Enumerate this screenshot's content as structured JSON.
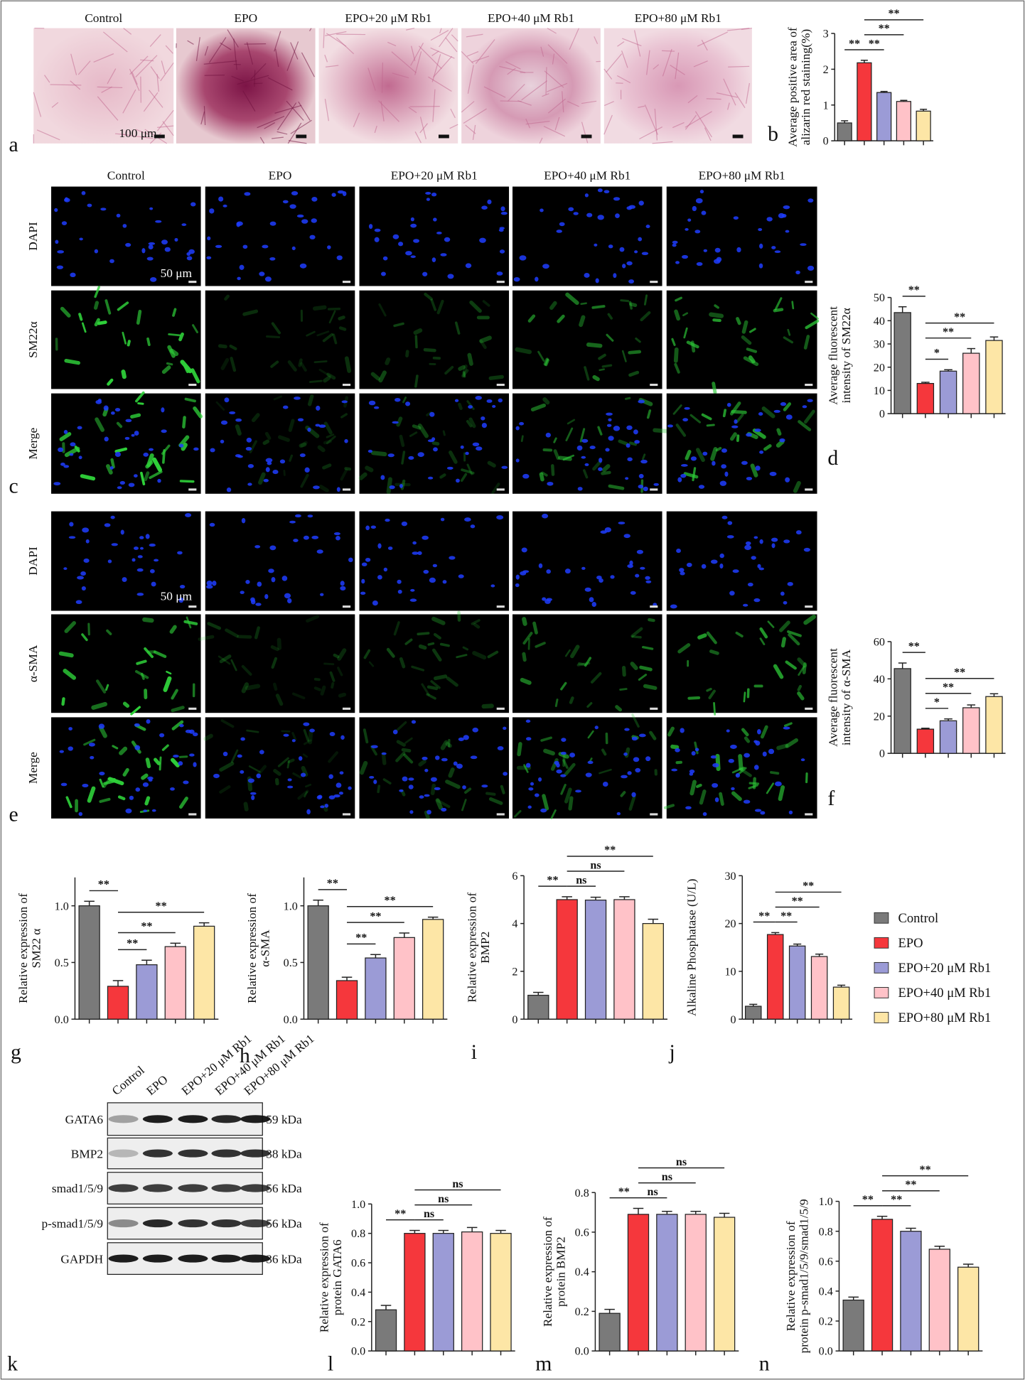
{
  "figure": {
    "panel_letters": [
      "a",
      "b",
      "c",
      "d",
      "e",
      "f",
      "g",
      "h",
      "i",
      "j",
      "k",
      "l",
      "m",
      "n"
    ],
    "alizarin": {
      "columns": [
        "Control",
        "EPO",
        "EPO+20 μM Rb1",
        "EPO+40 μM Rb1",
        "EPO+80 μM Rb1"
      ],
      "scale_label": "100 μm"
    },
    "sm22": {
      "columns": [
        "Control",
        "EPO",
        "EPO+20 μM Rb1",
        "EPO+40 μM Rb1",
        "EPO+80 μM Rb1"
      ],
      "rows": [
        "DAPI",
        "SM22α",
        "Merge"
      ],
      "scale_label": "50 μm"
    },
    "asma": {
      "rows": [
        "DAPI",
        "α-SMA",
        "Merge"
      ],
      "scale_label": "50 μm"
    },
    "blot": {
      "lanes": [
        "Control",
        "EPO",
        "EPO+20 μM Rb1",
        "EPO+40 μM Rb1",
        "EPO+80 μM Rb1"
      ],
      "proteins": [
        {
          "name": "GATA6",
          "size": "59 kDa"
        },
        {
          "name": "BMP2",
          "size": "38 kDa"
        },
        {
          "name": "smad1/5/9",
          "size": "56 kDa"
        },
        {
          "name": "p-smad1/5/9",
          "size": "56 kDa"
        },
        {
          "name": "GAPDH",
          "size": "36 kDa"
        }
      ]
    },
    "legend": {
      "names": [
        "Control",
        "EPO",
        "EPO+20 μM Rb1",
        "EPO+40 μM Rb1",
        "EPO+80 μM Rb1"
      ],
      "colors": [
        "#7a7a7a",
        "#f5373c",
        "#9b9bd6",
        "#ffc2c8",
        "#fde6a6"
      ]
    }
  },
  "chart_data": [
    {
      "type": "bar",
      "ylabel": [
        "Average positive area of",
        "alizarin red staining(%)"
      ],
      "categories": [
        null,
        null,
        null,
        null,
        null
      ],
      "values": [
        0.5,
        2.18,
        1.35,
        1.1,
        0.83
      ],
      "errors": [
        0.06,
        0.07,
        0.03,
        0.03,
        0.05
      ],
      "ylim": [
        0,
        3
      ],
      "yticks": [
        0,
        1,
        2,
        3
      ],
      "significance": [
        {
          "pair": [
            0,
            1
          ],
          "label": "**"
        },
        {
          "pair": [
            1,
            2
          ],
          "label": "**"
        },
        {
          "pair": [
            1,
            3
          ],
          "label": "**"
        },
        {
          "pair": [
            1,
            4
          ],
          "label": "**"
        }
      ]
    },
    {
      "type": "bar",
      "ylabel": [
        "Average fluorescent",
        "intensity of SM22α"
      ],
      "categories": [
        null,
        null,
        null,
        null,
        null
      ],
      "values": [
        43.5,
        13,
        18.3,
        26,
        31.5
      ],
      "errors": [
        2.5,
        0.5,
        0.6,
        2,
        1.5
      ],
      "ylim": [
        0,
        50
      ],
      "yticks": [
        0,
        10,
        20,
        30,
        40,
        50
      ],
      "significance": [
        {
          "pair": [
            0,
            1
          ],
          "label": "**"
        },
        {
          "pair": [
            1,
            2
          ],
          "label": "*"
        },
        {
          "pair": [
            1,
            3
          ],
          "label": "**"
        },
        {
          "pair": [
            1,
            4
          ],
          "label": "**"
        }
      ]
    },
    {
      "type": "bar",
      "ylabel": [
        "Average fluorescent",
        "intensity of α-SMA"
      ],
      "categories": [
        null,
        null,
        null,
        null,
        null
      ],
      "values": [
        45.5,
        13,
        17.5,
        24.5,
        30.5
      ],
      "errors": [
        3,
        0.5,
        1,
        1.5,
        1.5
      ],
      "ylim": [
        0,
        60
      ],
      "yticks": [
        0,
        20,
        40,
        60
      ],
      "significance": [
        {
          "pair": [
            0,
            1
          ],
          "label": "**"
        },
        {
          "pair": [
            1,
            2
          ],
          "label": "*"
        },
        {
          "pair": [
            1,
            3
          ],
          "label": "**"
        },
        {
          "pair": [
            1,
            4
          ],
          "label": "**"
        }
      ]
    },
    {
      "type": "bar",
      "ylabel": [
        "Relative expression of",
        "SM22 α"
      ],
      "categories": [
        null,
        null,
        null,
        null,
        null
      ],
      "values": [
        1.0,
        0.29,
        0.48,
        0.64,
        0.82
      ],
      "errors": [
        0.04,
        0.05,
        0.04,
        0.03,
        0.03
      ],
      "ylim": [
        0,
        1.25
      ],
      "yticks": [
        {
          "value": 0,
          "label": "0.0"
        },
        {
          "value": 0.5,
          "label": "0.5"
        },
        {
          "value": 1,
          "label": "1.0"
        }
      ],
      "significance": [
        {
          "pair": [
            0,
            1
          ],
          "label": "**"
        },
        {
          "pair": [
            1,
            2
          ],
          "label": "**"
        },
        {
          "pair": [
            1,
            3
          ],
          "label": "**"
        },
        {
          "pair": [
            1,
            4
          ],
          "label": "**"
        }
      ]
    },
    {
      "type": "bar",
      "ylabel": [
        "Relative expression of",
        "α-SMA"
      ],
      "categories": [
        null,
        null,
        null,
        null,
        null
      ],
      "values": [
        1.0,
        0.34,
        0.54,
        0.72,
        0.88
      ],
      "errors": [
        0.05,
        0.03,
        0.03,
        0.04,
        0.02
      ],
      "ylim": [
        0,
        1.25
      ],
      "yticks": [
        {
          "value": 0,
          "label": "0.0"
        },
        {
          "value": 0.5,
          "label": "0.5"
        },
        {
          "value": 1,
          "label": "1.0"
        }
      ],
      "significance": [
        {
          "pair": [
            0,
            1
          ],
          "label": "**"
        },
        {
          "pair": [
            1,
            2
          ],
          "label": "**"
        },
        {
          "pair": [
            1,
            3
          ],
          "label": "**"
        },
        {
          "pair": [
            1,
            4
          ],
          "label": "**"
        }
      ]
    },
    {
      "type": "bar",
      "ylabel": [
        "Relative expression of",
        "BMP2"
      ],
      "categories": [
        null,
        null,
        null,
        null,
        null
      ],
      "values": [
        1.0,
        5.0,
        4.98,
        5.0,
        4.0
      ],
      "errors": [
        0.12,
        0.12,
        0.12,
        0.12,
        0.18
      ],
      "ylim": [
        0,
        6
      ],
      "yticks": [
        0,
        2,
        4,
        6
      ],
      "significance": [
        {
          "pair": [
            0,
            1
          ],
          "label": "**"
        },
        {
          "pair": [
            1,
            2
          ],
          "label": "ns"
        },
        {
          "pair": [
            1,
            3
          ],
          "label": "ns"
        },
        {
          "pair": [
            1,
            4
          ],
          "label": "**"
        }
      ]
    },
    {
      "type": "bar",
      "ylabel": [
        "Alkaline Phosphatase (U/L)"
      ],
      "categories": [
        null,
        null,
        null,
        null,
        null
      ],
      "values": [
        2.7,
        17.7,
        15.3,
        13.1,
        6.7
      ],
      "errors": [
        0.4,
        0.4,
        0.4,
        0.5,
        0.4
      ],
      "ylim": [
        0,
        30
      ],
      "yticks": [
        0,
        10,
        20,
        30
      ],
      "significance": [
        {
          "pair": [
            0,
            1
          ],
          "label": "**"
        },
        {
          "pair": [
            1,
            2
          ],
          "label": "**"
        },
        {
          "pair": [
            1,
            3
          ],
          "label": "**"
        },
        {
          "pair": [
            1,
            4
          ],
          "label": "**"
        }
      ]
    },
    {
      "type": "bar",
      "ylabel": [
        "Relative expression of",
        "protein GATA6"
      ],
      "categories": [
        null,
        null,
        null,
        null,
        null
      ],
      "values": [
        0.28,
        0.8,
        0.8,
        0.81,
        0.8
      ],
      "errors": [
        0.03,
        0.02,
        0.02,
        0.03,
        0.02
      ],
      "ylim": [
        0,
        1
      ],
      "yticks": [
        {
          "value": 0,
          "label": "0.0"
        },
        0.2,
        0.4,
        0.6,
        0.8,
        {
          "value": 1,
          "label": "1.0"
        }
      ],
      "significance": [
        {
          "pair": [
            0,
            1
          ],
          "label": "**"
        },
        {
          "pair": [
            1,
            2
          ],
          "label": "ns"
        },
        {
          "pair": [
            1,
            3
          ],
          "label": "ns"
        },
        {
          "pair": [
            1,
            4
          ],
          "label": "ns"
        }
      ]
    },
    {
      "type": "bar",
      "ylabel": [
        "Relative expression of",
        "protein BMP2"
      ],
      "categories": [
        null,
        null,
        null,
        null,
        null
      ],
      "values": [
        0.19,
        0.69,
        0.69,
        0.69,
        0.675
      ],
      "errors": [
        0.02,
        0.03,
        0.015,
        0.015,
        0.02
      ],
      "ylim": [
        0,
        0.8
      ],
      "yticks": [
        {
          "value": 0,
          "label": "0.0"
        },
        0.2,
        0.4,
        0.6,
        0.8
      ],
      "significance": [
        {
          "pair": [
            0,
            1
          ],
          "label": "**"
        },
        {
          "pair": [
            1,
            2
          ],
          "label": "ns"
        },
        {
          "pair": [
            1,
            3
          ],
          "label": "ns"
        },
        {
          "pair": [
            1,
            4
          ],
          "label": "ns"
        }
      ]
    },
    {
      "type": "bar",
      "ylabel": [
        "Relative expression of",
        "protein p-smad1/5/9/smad1/5/9"
      ],
      "categories": [
        null,
        null,
        null,
        null,
        null
      ],
      "values": [
        0.34,
        0.88,
        0.8,
        0.68,
        0.56
      ],
      "errors": [
        0.02,
        0.02,
        0.02,
        0.02,
        0.02
      ],
      "ylim": [
        0,
        1
      ],
      "yticks": [
        {
          "value": 0,
          "label": "0.0"
        },
        0.2,
        0.4,
        0.6,
        0.8,
        {
          "value": 1,
          "label": "1.0"
        }
      ],
      "significance": [
        {
          "pair": [
            0,
            1
          ],
          "label": "**"
        },
        {
          "pair": [
            1,
            2
          ],
          "label": "**"
        },
        {
          "pair": [
            1,
            3
          ],
          "label": "**"
        },
        {
          "pair": [
            1,
            4
          ],
          "label": "**"
        }
      ]
    }
  ]
}
